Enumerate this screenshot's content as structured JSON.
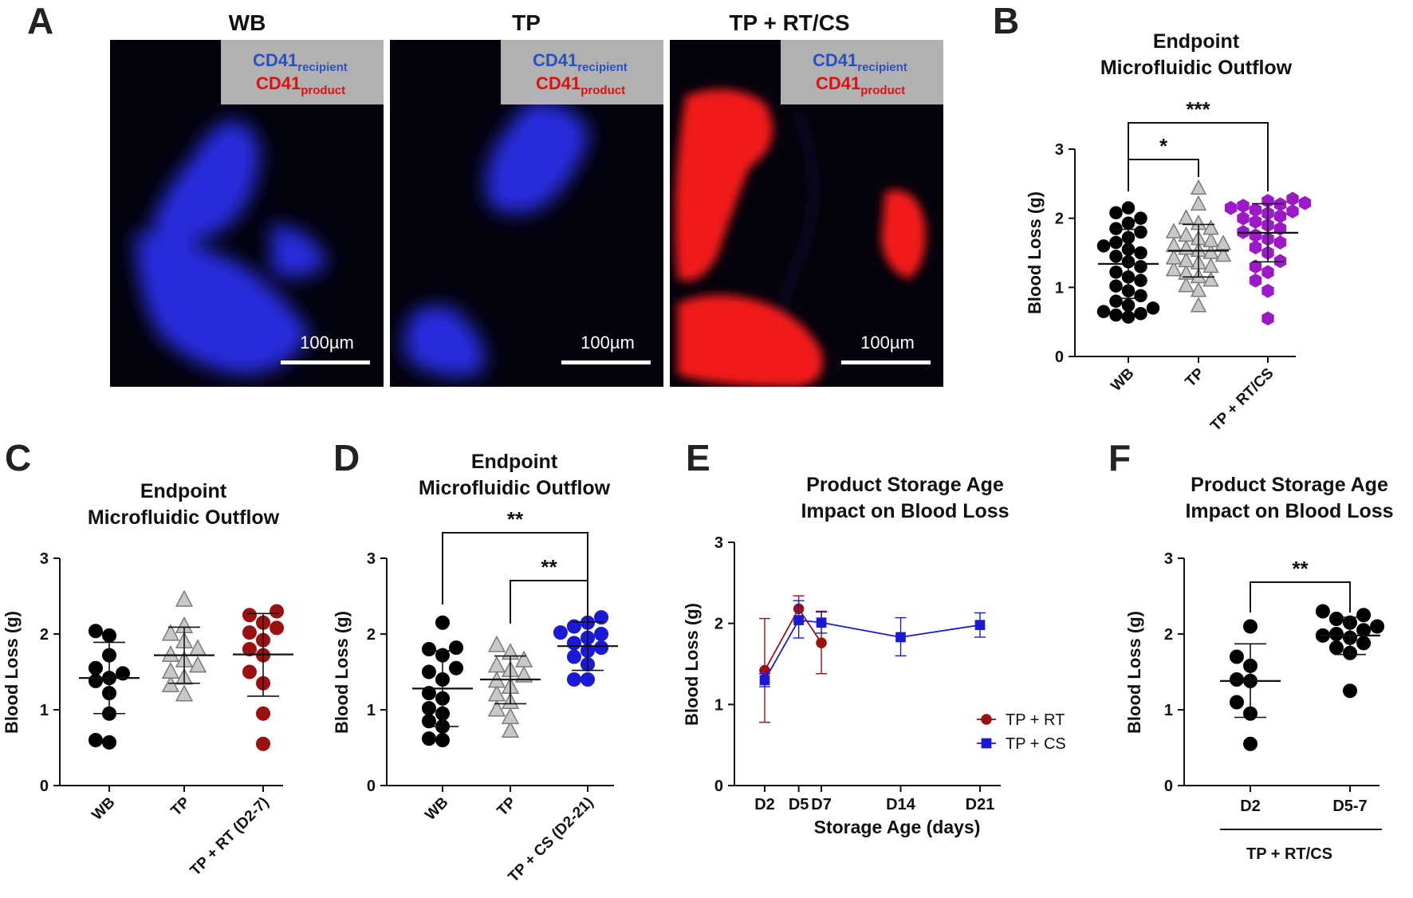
{
  "colors": {
    "wb": "#000000",
    "tp_fill": "#c8c8c8",
    "tp_edge": "#7a7a7a",
    "rtcs": "#9b19c7",
    "rt": "#9b1111",
    "cs": "#1a1ad6",
    "recipient_blue": "#2a52be",
    "product_red": "#e01010"
  },
  "panel_a": {
    "letter": "A",
    "images": [
      {
        "title": "WB",
        "recipient": "CD41",
        "recipient_sub": "recipient",
        "product": "CD41",
        "product_sub": "product",
        "scale_bar": "100µm"
      },
      {
        "title": "TP",
        "recipient": "CD41",
        "recipient_sub": "recipient",
        "product": "CD41",
        "product_sub": "product",
        "scale_bar": "100µm"
      },
      {
        "title": "TP + RT/CS",
        "recipient": "CD41",
        "recipient_sub": "recipient",
        "product": "CD41",
        "product_sub": "product",
        "scale_bar": "100µm"
      }
    ]
  },
  "chart_data": [
    {
      "panel": "B",
      "type": "scatter",
      "title": [
        "Endpoint",
        "Microfluidic Outflow"
      ],
      "ylabel": "Blood Loss (g)",
      "ylim": [
        0,
        3
      ],
      "yticks": [
        "0",
        "1",
        "2",
        "3"
      ],
      "categories": [
        "WB",
        "TP",
        "TP + RT/CS"
      ],
      "groups": [
        {
          "name": "WB",
          "mean": 1.34,
          "sd_low": 0.84,
          "sd_high": 1.84,
          "values": [
            0.57,
            0.6,
            0.62,
            0.65,
            0.7,
            0.74,
            0.8,
            0.88,
            0.95,
            1.02,
            1.1,
            1.15,
            1.22,
            1.3,
            1.37,
            1.45,
            1.5,
            1.55,
            1.6,
            1.65,
            1.72,
            1.8,
            1.85,
            1.93,
            2.0,
            2.08,
            2.15
          ]
        },
        {
          "name": "TP",
          "mean": 1.53,
          "sd_low": 1.15,
          "sd_high": 1.91,
          "values": [
            0.73,
            0.95,
            1.02,
            1.1,
            1.15,
            1.2,
            1.25,
            1.3,
            1.35,
            1.38,
            1.42,
            1.46,
            1.5,
            1.53,
            1.56,
            1.6,
            1.63,
            1.67,
            1.7,
            1.75,
            1.8,
            1.85,
            1.92,
            2.0,
            2.2,
            2.43
          ]
        },
        {
          "name": "TP + RT/CS",
          "mean": 1.79,
          "sd_low": 1.37,
          "sd_high": 2.21,
          "values": [
            0.55,
            0.95,
            1.1,
            1.22,
            1.3,
            1.38,
            1.5,
            1.58,
            1.65,
            1.7,
            1.75,
            1.8,
            1.85,
            1.9,
            1.95,
            2.0,
            2.03,
            2.07,
            2.1,
            2.12,
            2.15,
            2.18,
            2.2,
            2.22,
            2.25,
            2.28
          ]
        }
      ],
      "brackets": [
        {
          "from": 0,
          "to": 1,
          "label": "*"
        },
        {
          "from": 0,
          "to": 2,
          "label": "***"
        }
      ]
    },
    {
      "panel": "C",
      "type": "scatter",
      "title": [
        "Endpoint",
        "Microfluidic Outflow"
      ],
      "ylabel": "Blood Loss (g)",
      "ylim": [
        0,
        3
      ],
      "yticks": [
        "0",
        "1",
        "2",
        "3"
      ],
      "categories": [
        "WB",
        "TP",
        "TP + RT (D2-7)"
      ],
      "groups": [
        {
          "name": "WB",
          "mean": 1.42,
          "sd_low": 0.95,
          "sd_high": 1.89,
          "values": [
            0.57,
            0.6,
            0.95,
            1.22,
            1.38,
            1.42,
            1.48,
            1.55,
            1.72,
            1.98,
            2.04
          ]
        },
        {
          "name": "TP",
          "mean": 1.72,
          "sd_low": 1.35,
          "sd_high": 2.09,
          "values": [
            1.2,
            1.32,
            1.42,
            1.5,
            1.58,
            1.65,
            1.72,
            1.8,
            1.9,
            2.0,
            2.1,
            2.45
          ]
        },
        {
          "name": "TP + RT (D2-7)",
          "mean": 1.73,
          "sd_low": 1.18,
          "sd_high": 2.27,
          "values": [
            0.55,
            0.95,
            1.35,
            1.5,
            1.72,
            1.8,
            1.92,
            2.02,
            2.08,
            2.15,
            2.25,
            2.3
          ]
        }
      ],
      "brackets": []
    },
    {
      "panel": "D",
      "type": "scatter",
      "title": [
        "Endpoint",
        "Microfluidic Outflow"
      ],
      "ylabel": "Blood Loss (g)",
      "ylim": [
        0,
        3
      ],
      "yticks": [
        "0",
        "1",
        "2",
        "3"
      ],
      "categories": [
        "WB",
        "TP",
        "TP + CS (D2-21)"
      ],
      "groups": [
        {
          "name": "WB",
          "mean": 1.28,
          "sd_low": 0.78,
          "sd_high": 1.78,
          "values": [
            0.6,
            0.62,
            0.78,
            0.85,
            0.95,
            1.02,
            1.15,
            1.22,
            1.4,
            1.5,
            1.55,
            1.72,
            1.8,
            1.82,
            2.15
          ]
        },
        {
          "name": "TP",
          "mean": 1.4,
          "sd_low": 1.08,
          "sd_high": 1.71,
          "values": [
            0.72,
            0.9,
            1.0,
            1.1,
            1.2,
            1.3,
            1.38,
            1.45,
            1.52,
            1.58,
            1.65,
            1.75,
            1.85
          ]
        },
        {
          "name": "TP + CS (D2-21)",
          "mean": 1.84,
          "sd_low": 1.52,
          "sd_high": 2.16,
          "values": [
            1.4,
            1.4,
            1.6,
            1.7,
            1.78,
            1.82,
            1.88,
            1.95,
            2.0,
            2.02,
            2.1,
            2.15,
            2.22
          ]
        }
      ],
      "brackets": [
        {
          "from": 1,
          "to": 2,
          "label": "**"
        },
        {
          "from": 0,
          "to": 2,
          "label": "**"
        }
      ]
    },
    {
      "panel": "E",
      "type": "line",
      "title": [
        "Product Storage Age",
        "Impact on Blood Loss"
      ],
      "xlabel": "Storage Age (days)",
      "ylabel": "Blood Loss (g)",
      "ylim": [
        0,
        3
      ],
      "yticks": [
        "0",
        "1",
        "2",
        "3"
      ],
      "xlim": [
        0,
        22
      ],
      "xticks": [
        {
          "x": 2,
          "label": "D2"
        },
        {
          "x": 5,
          "label": "D5"
        },
        {
          "x": 7,
          "label": "D7"
        },
        {
          "x": 14,
          "label": "D14"
        },
        {
          "x": 21,
          "label": "D21"
        }
      ],
      "series": [
        {
          "name": "TP + RT",
          "color_key": "rt",
          "marker": "circle",
          "x": [
            2,
            5,
            7
          ],
          "y": [
            1.42,
            2.18,
            1.76
          ],
          "err_low": [
            0.78,
            2.02,
            1.38
          ],
          "err_high": [
            2.06,
            2.34,
            2.15
          ]
        },
        {
          "name": "TP + CS",
          "color_key": "cs",
          "marker": "square",
          "x": [
            2,
            5,
            7,
            14,
            21
          ],
          "y": [
            1.3,
            2.04,
            2.01,
            1.83,
            1.98
          ],
          "err_low": [
            1.22,
            1.82,
            1.88,
            1.6,
            1.83
          ],
          "err_high": [
            1.38,
            2.28,
            2.14,
            2.07,
            2.13
          ]
        }
      ],
      "legend": {
        "position": "bottom-right",
        "labels": [
          "TP + RT",
          "TP + CS"
        ]
      }
    },
    {
      "panel": "F",
      "type": "scatter",
      "title": [
        "Product Storage Age",
        "Impact on Blood Loss"
      ],
      "ylabel": "Blood Loss (g)",
      "ylim": [
        0,
        3
      ],
      "yticks": [
        "0",
        "1",
        "2",
        "3"
      ],
      "categories": [
        "D2",
        "D5-7"
      ],
      "group_label": "TP + RT/CS",
      "groups": [
        {
          "name": "D2",
          "mean": 1.38,
          "sd_low": 0.9,
          "sd_high": 1.87,
          "values": [
            0.55,
            0.95,
            1.1,
            1.38,
            1.4,
            1.58,
            1.7,
            2.1
          ]
        },
        {
          "name": "D5-7",
          "mean": 1.98,
          "sd_low": 1.73,
          "sd_high": 2.22,
          "values": [
            1.25,
            1.75,
            1.82,
            1.88,
            1.95,
            1.98,
            2.0,
            2.05,
            2.1,
            2.15,
            2.2,
            2.25,
            2.3
          ]
        }
      ],
      "brackets": [
        {
          "from": 0,
          "to": 1,
          "label": "**"
        }
      ]
    }
  ]
}
